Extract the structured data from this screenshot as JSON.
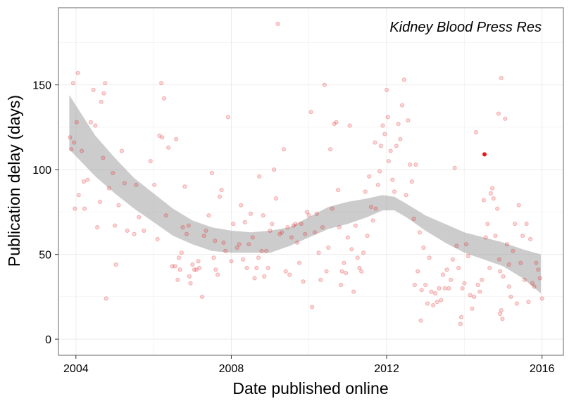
{
  "chart_data": {
    "type": "scatter",
    "title": "",
    "annotation": "Kidney Blood Press Res",
    "xlabel": "Date published online",
    "ylabel": "Publication delay (days)",
    "xlim": [
      2003.55,
      2016.55
    ],
    "ylim": [
      -9.5,
      195.5
    ],
    "x_ticks": [
      2004,
      2008,
      2012,
      2016
    ],
    "x_tick_labels": [
      "2004",
      "2008",
      "2012",
      "2016"
    ],
    "y_ticks": [
      0,
      50,
      100,
      150
    ],
    "y_tick_labels": [
      "0",
      "50",
      "100",
      "150"
    ],
    "grid": true,
    "legend": "none",
    "colors": {
      "points": "#e41a1c",
      "ribbon": "#999999",
      "grid": "#ebebeb",
      "border": "#7f7f7f"
    },
    "series": [
      {
        "points": [
          [
            2003.85,
            119
          ],
          [
            2003.88,
            112
          ],
          [
            2003.93,
            151
          ],
          [
            2003.95,
            116
          ],
          [
            2003.97,
            77
          ],
          [
            2004.02,
            128
          ],
          [
            2004.05,
            157
          ],
          [
            2004.07,
            85
          ],
          [
            2004.15,
            111
          ],
          [
            2004.2,
            93
          ],
          [
            2004.22,
            77
          ],
          [
            2004.3,
            94
          ],
          [
            2004.38,
            128
          ],
          [
            2004.45,
            147
          ],
          [
            2004.5,
            126
          ],
          [
            2004.55,
            66
          ],
          [
            2004.62,
            81
          ],
          [
            2004.65,
            140
          ],
          [
            2004.7,
            107
          ],
          [
            2004.72,
            145
          ],
          [
            2004.75,
            151
          ],
          [
            2004.78,
            24
          ],
          [
            2004.85,
            89
          ],
          [
            2004.95,
            98
          ],
          [
            2005.0,
            67
          ],
          [
            2005.03,
            44
          ],
          [
            2005.1,
            79
          ],
          [
            2005.18,
            111
          ],
          [
            2005.25,
            92
          ],
          [
            2005.32,
            64
          ],
          [
            2005.5,
            62
          ],
          [
            2005.55,
            91
          ],
          [
            2005.62,
            72
          ],
          [
            2005.75,
            64
          ],
          [
            2005.92,
            105
          ],
          [
            2006.02,
            91
          ],
          [
            2006.1,
            59
          ],
          [
            2006.15,
            120
          ],
          [
            2006.2,
            151
          ],
          [
            2006.22,
            119
          ],
          [
            2006.27,
            142
          ],
          [
            2006.32,
            73
          ],
          [
            2006.38,
            113
          ],
          [
            2006.48,
            43
          ],
          [
            2006.55,
            43
          ],
          [
            2006.58,
            118
          ],
          [
            2006.62,
            35
          ],
          [
            2006.65,
            48
          ],
          [
            2006.68,
            41
          ],
          [
            2006.72,
            51
          ],
          [
            2006.75,
            66
          ],
          [
            2006.8,
            90
          ],
          [
            2006.85,
            62
          ],
          [
            2006.9,
            67
          ],
          [
            2006.92,
            37
          ],
          [
            2006.95,
            33
          ],
          [
            2007.0,
            44
          ],
          [
            2007.05,
            41
          ],
          [
            2007.1,
            41
          ],
          [
            2007.15,
            46
          ],
          [
            2007.18,
            42
          ],
          [
            2007.25,
            25
          ],
          [
            2007.3,
            61
          ],
          [
            2007.35,
            64
          ],
          [
            2007.42,
            73
          ],
          [
            2007.5,
            98
          ],
          [
            2007.55,
            48
          ],
          [
            2007.58,
            58
          ],
          [
            2007.6,
            41
          ],
          [
            2007.65,
            38
          ],
          [
            2007.7,
            84
          ],
          [
            2007.75,
            88
          ],
          [
            2007.8,
            57
          ],
          [
            2007.85,
            52
          ],
          [
            2007.92,
            131
          ],
          [
            2008.0,
            46
          ],
          [
            2008.05,
            68
          ],
          [
            2008.15,
            54
          ],
          [
            2008.2,
            56
          ],
          [
            2008.25,
            79
          ],
          [
            2008.3,
            47
          ],
          [
            2008.35,
            69
          ],
          [
            2008.4,
            42
          ],
          [
            2008.45,
            56
          ],
          [
            2008.5,
            74
          ],
          [
            2008.55,
            60
          ],
          [
            2008.6,
            36
          ],
          [
            2008.65,
            42
          ],
          [
            2008.7,
            48
          ],
          [
            2008.72,
            96
          ],
          [
            2008.78,
            52
          ],
          [
            2008.82,
            73
          ],
          [
            2008.85,
            37
          ],
          [
            2008.9,
            52
          ],
          [
            2008.95,
            42
          ],
          [
            2009.0,
            64
          ],
          [
            2009.05,
            68
          ],
          [
            2009.1,
            100
          ],
          [
            2009.15,
            83
          ],
          [
            2009.2,
            186
          ],
          [
            2009.25,
            62
          ],
          [
            2009.3,
            63
          ],
          [
            2009.35,
            112
          ],
          [
            2009.4,
            40
          ],
          [
            2009.45,
            66
          ],
          [
            2009.5,
            38
          ],
          [
            2009.55,
            60
          ],
          [
            2009.6,
            67
          ],
          [
            2009.65,
            68
          ],
          [
            2009.7,
            57
          ],
          [
            2009.75,
            45
          ],
          [
            2009.8,
            68
          ],
          [
            2009.85,
            34
          ],
          [
            2009.9,
            62
          ],
          [
            2009.95,
            75
          ],
          [
            2010.0,
            73
          ],
          [
            2010.05,
            134
          ],
          [
            2010.08,
            19
          ],
          [
            2010.15,
            63
          ],
          [
            2010.2,
            74
          ],
          [
            2010.25,
            51
          ],
          [
            2010.3,
            35
          ],
          [
            2010.35,
            66
          ],
          [
            2010.4,
            150
          ],
          [
            2010.45,
            40
          ],
          [
            2010.5,
            54
          ],
          [
            2010.55,
            112
          ],
          [
            2010.6,
            77
          ],
          [
            2010.65,
            127
          ],
          [
            2010.7,
            128
          ],
          [
            2010.75,
            88
          ],
          [
            2010.78,
            66
          ],
          [
            2010.82,
            32
          ],
          [
            2010.85,
            40
          ],
          [
            2010.9,
            45
          ],
          [
            2010.95,
            39
          ],
          [
            2011.0,
            60
          ],
          [
            2011.05,
            126
          ],
          [
            2011.1,
            53
          ],
          [
            2011.15,
            28
          ],
          [
            2011.2,
            67
          ],
          [
            2011.25,
            48
          ],
          [
            2011.3,
            42
          ],
          [
            2011.35,
            40
          ],
          [
            2011.4,
            51
          ],
          [
            2011.45,
            87
          ],
          [
            2011.5,
            61
          ],
          [
            2011.55,
            96
          ],
          [
            2011.6,
            78
          ],
          [
            2011.65,
            70
          ],
          [
            2011.7,
            116
          ],
          [
            2011.72,
            77
          ],
          [
            2011.78,
            91
          ],
          [
            2011.82,
            99
          ],
          [
            2011.85,
            114
          ],
          [
            2011.9,
            126
          ],
          [
            2011.95,
            121
          ],
          [
            2012.0,
            147
          ],
          [
            2012.03,
            131
          ],
          [
            2012.05,
            105
          ],
          [
            2012.1,
            111
          ],
          [
            2012.15,
            94
          ],
          [
            2012.2,
            87
          ],
          [
            2012.25,
            114
          ],
          [
            2012.3,
            127
          ],
          [
            2012.35,
            118
          ],
          [
            2012.4,
            138
          ],
          [
            2012.45,
            153
          ],
          [
            2012.5,
            85
          ],
          [
            2012.55,
            129
          ],
          [
            2012.6,
            103
          ],
          [
            2012.65,
            93
          ],
          [
            2012.7,
            71
          ],
          [
            2012.72,
            32
          ],
          [
            2012.75,
            103
          ],
          [
            2012.8,
            40
          ],
          [
            2012.85,
            63
          ],
          [
            2012.88,
            11
          ],
          [
            2012.9,
            29
          ],
          [
            2012.95,
            54
          ],
          [
            2013.0,
            32
          ],
          [
            2013.05,
            21
          ],
          [
            2013.1,
            48
          ],
          [
            2013.15,
            28
          ],
          [
            2013.2,
            20
          ],
          [
            2013.25,
            27
          ],
          [
            2013.3,
            22
          ],
          [
            2013.35,
            30
          ],
          [
            2013.4,
            23
          ],
          [
            2013.45,
            38
          ],
          [
            2013.5,
            30
          ],
          [
            2013.55,
            41
          ],
          [
            2013.6,
            30
          ],
          [
            2013.65,
            35
          ],
          [
            2013.7,
            47
          ],
          [
            2013.75,
            101
          ],
          [
            2013.8,
            55
          ],
          [
            2013.85,
            42
          ],
          [
            2013.9,
            9
          ],
          [
            2013.92,
            13
          ],
          [
            2013.95,
            30
          ],
          [
            2014.0,
            33
          ],
          [
            2014.05,
            56
          ],
          [
            2014.1,
            49
          ],
          [
            2014.15,
            26
          ],
          [
            2014.2,
            18
          ],
          [
            2014.25,
            25
          ],
          [
            2014.3,
            122
          ],
          [
            2014.35,
            32
          ],
          [
            2014.4,
            28
          ],
          [
            2014.45,
            35
          ],
          [
            2014.5,
            82
          ],
          [
            2014.52,
            109
          ],
          [
            2014.55,
            60
          ],
          [
            2014.6,
            68
          ],
          [
            2014.65,
            42
          ],
          [
            2014.68,
            86
          ],
          [
            2014.72,
            89
          ],
          [
            2014.75,
            83
          ],
          [
            2014.8,
            61
          ],
          [
            2014.85,
            77
          ],
          [
            2014.9,
            47
          ],
          [
            2014.92,
            15
          ],
          [
            2014.95,
            17
          ],
          [
            2014.98,
            12
          ],
          [
            2015.0,
            37
          ],
          [
            2015.05,
            130
          ],
          [
            2015.1,
            56
          ],
          [
            2015.15,
            44
          ],
          [
            2015.2,
            25
          ],
          [
            2015.25,
            52
          ],
          [
            2015.3,
            68
          ],
          [
            2015.35,
            21
          ],
          [
            2015.4,
            79
          ],
          [
            2015.45,
            45
          ],
          [
            2015.5,
            61
          ],
          [
            2015.55,
            35
          ],
          [
            2015.6,
            68
          ],
          [
            2015.65,
            22
          ],
          [
            2015.7,
            59
          ],
          [
            2015.75,
            33
          ],
          [
            2015.8,
            31
          ],
          [
            2015.85,
            45
          ],
          [
            2015.9,
            41
          ],
          [
            2015.95,
            36
          ],
          [
            2016.0,
            24
          ],
          [
            2015.15,
            31
          ],
          [
            2014.92,
            40
          ],
          [
            2014.88,
            133
          ],
          [
            2014.95,
            154
          ]
        ]
      }
    ],
    "smooth": {
      "x": [
        2003.83,
        2004.5,
        2005.0,
        2005.5,
        2006.0,
        2006.5,
        2007.0,
        2007.5,
        2008.0,
        2008.5,
        2009.0,
        2009.5,
        2010.0,
        2010.5,
        2011.0,
        2011.5,
        2011.9,
        2012.2,
        2012.5,
        2013.0,
        2013.5,
        2014.0,
        2014.5,
        2015.0,
        2015.5,
        2015.97
      ],
      "lower": [
        112,
        96,
        86,
        77,
        69,
        61,
        56,
        52,
        51,
        51,
        51,
        55,
        60,
        65,
        68,
        72,
        76,
        76,
        72,
        64,
        57,
        51,
        47,
        43,
        36,
        27
      ],
      "upper": [
        144,
        120,
        107,
        95,
        86,
        77,
        70,
        66,
        64,
        63,
        64,
        66,
        72,
        78,
        81,
        83,
        85,
        84,
        80,
        73,
        68,
        63,
        60,
        57,
        53,
        50
      ]
    }
  }
}
